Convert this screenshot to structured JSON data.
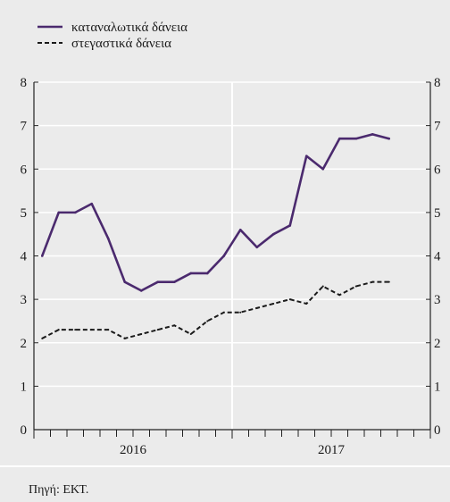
{
  "source_note": "Πηγή: ΕΚΤ.",
  "chart_data": {
    "type": "line",
    "x_range": [
      "2016-01",
      "2017-12"
    ],
    "x": [
      "2016-01",
      "2016-02",
      "2016-03",
      "2016-04",
      "2016-05",
      "2016-06",
      "2016-07",
      "2016-08",
      "2016-09",
      "2016-10",
      "2016-11",
      "2016-12",
      "2017-01",
      "2017-02",
      "2017-03",
      "2017-04",
      "2017-05",
      "2017-06",
      "2017-07",
      "2017-08",
      "2017-09",
      "2017-10"
    ],
    "x_tick_labels": [
      "2016",
      "2017"
    ],
    "y_ticks": [
      0,
      1,
      2,
      3,
      4,
      5,
      6,
      7,
      8
    ],
    "ylim": [
      0,
      8
    ],
    "secondary_y_axis": true,
    "grid": {
      "horizontal": true,
      "year_separators": true
    },
    "legend_position": "top-left",
    "series": [
      {
        "name": "καταναλωτικά δάνεια",
        "color": "#4b2a6e",
        "line_style": "solid",
        "values": [
          4.0,
          5.0,
          5.0,
          5.2,
          4.4,
          3.4,
          3.2,
          3.4,
          3.4,
          3.6,
          3.6,
          4.0,
          4.6,
          4.2,
          4.5,
          4.7,
          6.3,
          6.0,
          6.7,
          6.7,
          6.8,
          6.7
        ]
      },
      {
        "name": "στεγαστικά δάνεια",
        "color": "#1a1a1a",
        "line_style": "dashed",
        "values": [
          2.1,
          2.3,
          2.3,
          2.3,
          2.3,
          2.1,
          2.2,
          2.3,
          2.4,
          2.2,
          2.5,
          2.7,
          2.7,
          2.8,
          2.9,
          3.0,
          2.9,
          3.3,
          3.1,
          3.3,
          3.4,
          3.4
        ]
      }
    ]
  }
}
